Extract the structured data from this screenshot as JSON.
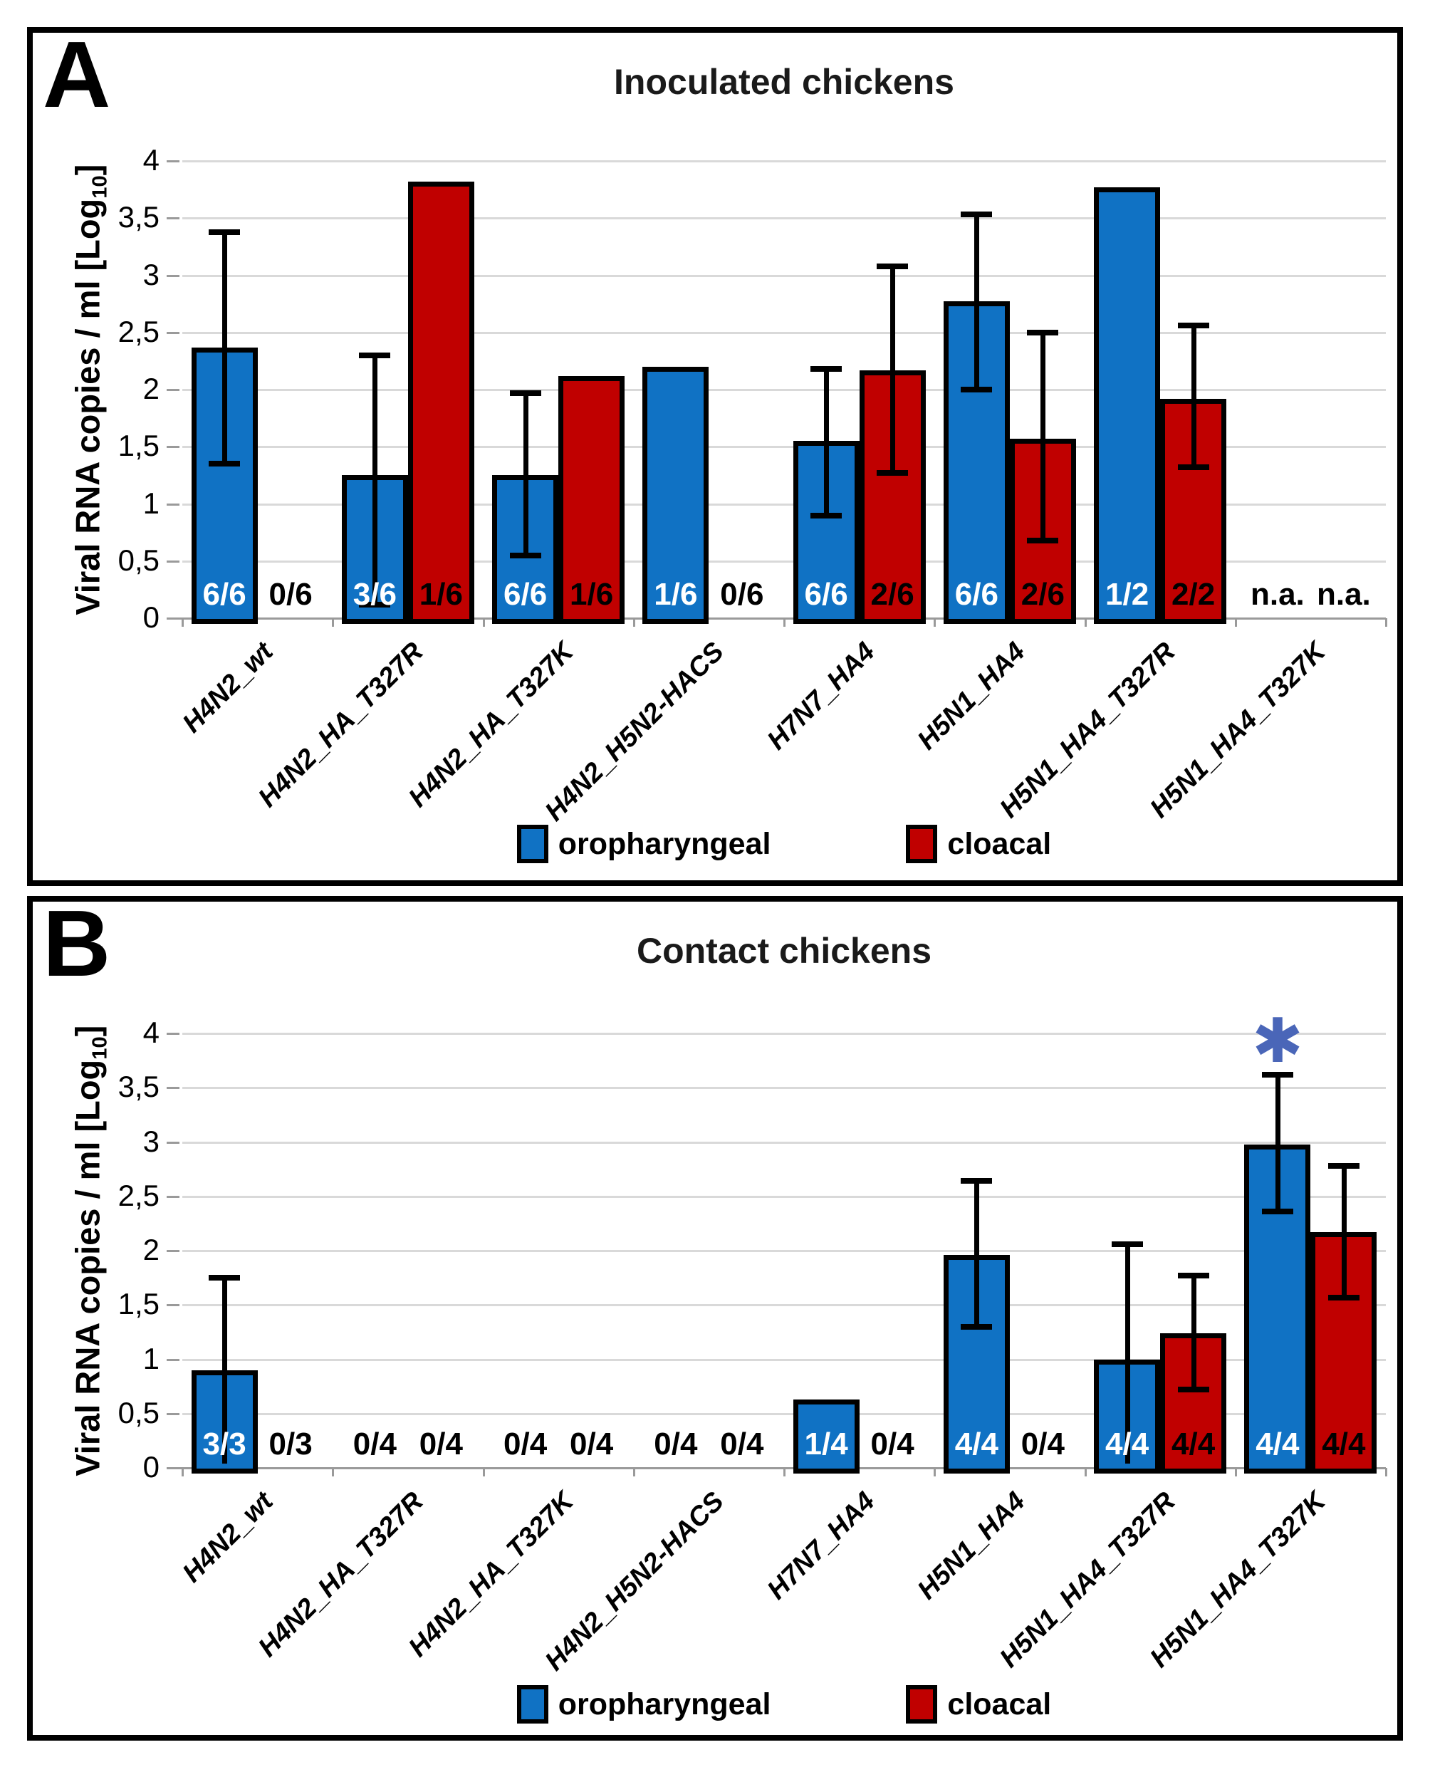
{
  "figure": {
    "colors": {
      "oropharyngeal_blue": "#1072C4",
      "cloacal_red": "#C00000",
      "grid": "#D9D9D9",
      "axis_gray": "#9A9A9A",
      "asterisk_blue": "#4A66B8"
    }
  },
  "chart_data": [
    {
      "type": "bar",
      "panel_label": "A",
      "title": "Inoculated chickens",
      "ylabel": "Viral RNA copies / ml [Log10]",
      "ylabel_parts": {
        "pre": "Viral RNA copies / ml [Log",
        "sub": "10",
        "post": "]"
      },
      "ylim": [
        0,
        4
      ],
      "ytick_step": 0.5,
      "ytick_labels": [
        "4",
        "3,5",
        "3",
        "2,5",
        "2",
        "1,5",
        "1",
        "0,5",
        "0"
      ],
      "grid": true,
      "legend_position": "bottom",
      "categories": [
        "H4N2_wt",
        "H4N2_HA_T327R",
        "H4N2_HA_T327K",
        "H4N2_H5N2-HACS",
        "H7N7_HA4",
        "H5N1_HA4",
        "H5N1_HA4_T327R",
        "H5N1_HA4_T327K"
      ],
      "series": [
        {
          "name": "oropharyngeal",
          "color": "#1072C4",
          "values": [
            2.37,
            1.25,
            1.25,
            2.2,
            1.55,
            2.77,
            3.77,
            null
          ],
          "err_lo": [
            1.35,
            0.12,
            0.55,
            null,
            0.9,
            2.0,
            null,
            null
          ],
          "err_hi": [
            3.38,
            2.3,
            1.97,
            null,
            2.18,
            3.53,
            null,
            null
          ],
          "labels": [
            "6/6",
            "3/6",
            "6/6",
            "1/6",
            "6/6",
            "6/6",
            "1/2",
            "n.a."
          ]
        },
        {
          "name": "cloacal",
          "color": "#C00000",
          "values": [
            null,
            3.82,
            2.12,
            null,
            2.17,
            1.57,
            1.92,
            null
          ],
          "err_lo": [
            null,
            null,
            null,
            null,
            1.27,
            0.68,
            1.32,
            null
          ],
          "err_hi": [
            null,
            null,
            null,
            null,
            3.08,
            2.5,
            2.56,
            null
          ],
          "labels": [
            "0/6",
            "1/6",
            "1/6",
            "0/6",
            "2/6",
            "2/6",
            "2/2",
            "n.a."
          ]
        }
      ]
    },
    {
      "type": "bar",
      "panel_label": "B",
      "title": "Contact chickens",
      "ylabel": "Viral RNA copies / ml [Log10]",
      "ylabel_parts": {
        "pre": "Viral RNA copies / ml [Log",
        "sub": "10",
        "post": "]"
      },
      "ylim": [
        0,
        4
      ],
      "ytick_step": 0.5,
      "ytick_labels": [
        "4",
        "3,5",
        "3",
        "2,5",
        "2",
        "1,5",
        "1",
        "0,5",
        "0"
      ],
      "grid": true,
      "legend_position": "bottom",
      "categories": [
        "H4N2_wt",
        "H4N2_HA_T327R",
        "H4N2_HA_T327K",
        "H4N2_H5N2-HACS",
        "H7N7_HA4",
        "H5N1_HA4",
        "H5N1_HA4_T327R",
        "H5N1_HA4_T327K"
      ],
      "series": [
        {
          "name": "oropharyngeal",
          "color": "#1072C4",
          "values": [
            0.9,
            null,
            null,
            null,
            0.63,
            1.96,
            1.0,
            2.98
          ],
          "err_lo": [
            null,
            null,
            null,
            null,
            null,
            1.3,
            null,
            2.36
          ],
          "err_hi": [
            1.75,
            null,
            null,
            null,
            null,
            2.64,
            2.06,
            3.62
          ],
          "labels": [
            "3/3",
            "0/4",
            "0/4",
            "0/4",
            "1/4",
            "4/4",
            "4/4",
            "4/4"
          ]
        },
        {
          "name": "cloacal",
          "color": "#C00000",
          "values": [
            null,
            null,
            null,
            null,
            null,
            null,
            1.24,
            2.17
          ],
          "err_lo": [
            null,
            null,
            null,
            null,
            null,
            null,
            0.72,
            1.57
          ],
          "err_hi": [
            null,
            null,
            null,
            null,
            null,
            null,
            1.77,
            2.78
          ],
          "labels": [
            "0/3",
            "0/4",
            "0/4",
            "0/4",
            "0/4",
            "0/4",
            "4/4",
            "4/4"
          ]
        }
      ],
      "annotation": {
        "symbol": "✱",
        "category_index": 7,
        "series_index": 0,
        "color": "#4A66B8",
        "y": 3.85
      }
    }
  ]
}
